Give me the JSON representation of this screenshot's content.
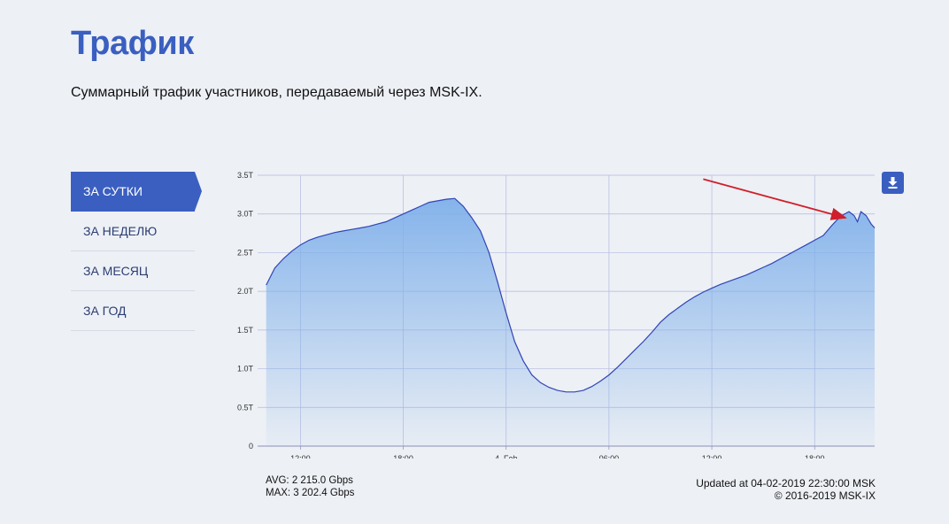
{
  "page": {
    "title": "Трафик",
    "subtitle": "Суммарный трафик участников, передаваемый через MSK-IX."
  },
  "nav": {
    "items": [
      {
        "label": "ЗА СУТКИ",
        "active": true
      },
      {
        "label": "ЗА НЕДЕЛЮ",
        "active": false
      },
      {
        "label": "ЗА МЕСЯЦ",
        "active": false
      },
      {
        "label": "ЗА ГОД",
        "active": false
      }
    ]
  },
  "download": {
    "icon": "download-icon"
  },
  "stats": {
    "avg": "AVG: 2 215.0 Gbps",
    "max": "MAX: 3 202.4 Gbps"
  },
  "footer": {
    "updated": "Updated at 04-02-2019 22:30:00 MSK",
    "copyright": "© 2016-2019 MSK-IX"
  },
  "colors": {
    "accent": "#3a5fc0",
    "line": "#3045b5",
    "fill_top": "#7fb0ea",
    "arrow": "#d01f2a"
  },
  "chart_data": {
    "type": "area",
    "y_ticks": [
      "0",
      "0.5T",
      "1.0T",
      "1.5T",
      "2.0T",
      "2.5T",
      "3.0T",
      "3.5T"
    ],
    "x_ticks": [
      {
        "h": 12,
        "label": "12:00"
      },
      {
        "h": 18,
        "label": "18:00"
      },
      {
        "h": 24,
        "label": "4. Feb"
      },
      {
        "h": 30,
        "label": "06:00"
      },
      {
        "h": 36,
        "label": "12:00"
      },
      {
        "h": 42,
        "label": "18:00"
      }
    ],
    "xlim_hours": [
      9.5,
      45.5
    ],
    "ylim": [
      0,
      3.5
    ],
    "unit": "Tbps",
    "series": [
      {
        "points": [
          [
            10.0,
            2.08
          ],
          [
            10.5,
            2.3
          ],
          [
            11.0,
            2.42
          ],
          [
            11.5,
            2.52
          ],
          [
            12.0,
            2.6
          ],
          [
            12.5,
            2.66
          ],
          [
            13.0,
            2.7
          ],
          [
            13.5,
            2.73
          ],
          [
            14.0,
            2.76
          ],
          [
            14.5,
            2.78
          ],
          [
            15.0,
            2.8
          ],
          [
            15.5,
            2.82
          ],
          [
            16.0,
            2.84
          ],
          [
            16.5,
            2.87
          ],
          [
            17.0,
            2.9
          ],
          [
            17.5,
            2.95
          ],
          [
            18.0,
            3.0
          ],
          [
            18.5,
            3.05
          ],
          [
            19.0,
            3.1
          ],
          [
            19.5,
            3.15
          ],
          [
            20.0,
            3.17
          ],
          [
            20.5,
            3.19
          ],
          [
            21.0,
            3.2
          ],
          [
            21.5,
            3.1
          ],
          [
            22.0,
            2.95
          ],
          [
            22.5,
            2.78
          ],
          [
            23.0,
            2.5
          ],
          [
            23.5,
            2.12
          ],
          [
            24.0,
            1.72
          ],
          [
            24.5,
            1.35
          ],
          [
            25.0,
            1.1
          ],
          [
            25.5,
            0.92
          ],
          [
            26.0,
            0.82
          ],
          [
            26.5,
            0.76
          ],
          [
            27.0,
            0.72
          ],
          [
            27.5,
            0.7
          ],
          [
            28.0,
            0.7
          ],
          [
            28.5,
            0.72
          ],
          [
            29.0,
            0.77
          ],
          [
            29.5,
            0.84
          ],
          [
            30.0,
            0.92
          ],
          [
            30.5,
            1.02
          ],
          [
            31.0,
            1.13
          ],
          [
            31.5,
            1.24
          ],
          [
            32.0,
            1.35
          ],
          [
            32.5,
            1.47
          ],
          [
            33.0,
            1.6
          ],
          [
            33.5,
            1.7
          ],
          [
            34.0,
            1.78
          ],
          [
            34.5,
            1.86
          ],
          [
            35.0,
            1.93
          ],
          [
            35.5,
            1.99
          ],
          [
            36.0,
            2.04
          ],
          [
            36.5,
            2.09
          ],
          [
            37.0,
            2.13
          ],
          [
            37.5,
            2.17
          ],
          [
            38.0,
            2.21
          ],
          [
            38.5,
            2.26
          ],
          [
            39.0,
            2.31
          ],
          [
            39.5,
            2.36
          ],
          [
            40.0,
            2.42
          ],
          [
            40.5,
            2.48
          ],
          [
            41.0,
            2.54
          ],
          [
            41.5,
            2.6
          ],
          [
            42.0,
            2.66
          ],
          [
            42.5,
            2.72
          ],
          [
            43.0,
            2.85
          ],
          [
            43.5,
            2.97
          ],
          [
            44.0,
            3.03
          ],
          [
            44.3,
            2.98
          ],
          [
            44.5,
            2.9
          ],
          [
            44.7,
            3.03
          ],
          [
            45.0,
            2.98
          ],
          [
            45.3,
            2.87
          ],
          [
            45.5,
            2.82
          ]
        ]
      }
    ],
    "annotations": [
      {
        "type": "arrow",
        "from_h": 35.5,
        "from_v": 3.45,
        "to_h": 43.8,
        "to_v": 2.95
      }
    ]
  }
}
